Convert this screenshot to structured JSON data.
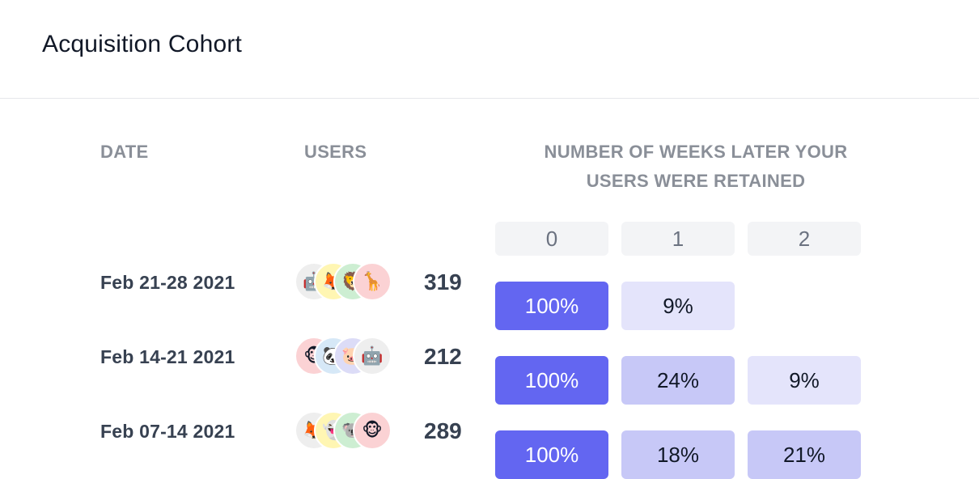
{
  "header": {
    "title": "Acquisition Cohort"
  },
  "columns": {
    "date": "DATE",
    "users": "USERS",
    "weeks_line1": "NUMBER OF WEEKS LATER YOUR",
    "weeks_line2": "USERS WERE RETAINED"
  },
  "weeks": [
    "0",
    "1",
    "2"
  ],
  "colors": {
    "cell_strong": "#6366f1",
    "cell_medium": "#c7c8f7",
    "cell_light": "#e4e4fb",
    "week_header_bg": "#f3f4f6"
  },
  "rows": [
    {
      "date": "Feb 21-28 2021",
      "users": "319",
      "avatars": [
        {
          "icon": "robot-icon",
          "glyph": "🤖",
          "bg": "#eeeeee"
        },
        {
          "icon": "fox-icon",
          "glyph": "🦊",
          "bg": "#fff6b3"
        },
        {
          "icon": "lion-icon",
          "glyph": "🦁",
          "bg": "#cdeed2"
        },
        {
          "icon": "giraffe-icon",
          "glyph": "🦒",
          "bg": "#fbd2d4"
        }
      ],
      "cells": [
        "100%",
        "9%",
        ""
      ]
    },
    {
      "date": "Feb 14-21 2021",
      "users": "212",
      "avatars": [
        {
          "icon": "monkey-icon",
          "glyph": "🐵",
          "bg": "#fbd2d4"
        },
        {
          "icon": "panda-icon",
          "glyph": "🐼",
          "bg": "#d6e8f7"
        },
        {
          "icon": "pig-icon",
          "glyph": "🐷",
          "bg": "#dcdcf7"
        },
        {
          "icon": "robot-icon",
          "glyph": "🤖",
          "bg": "#eeeeee"
        }
      ],
      "cells": [
        "100%",
        "24%",
        "9%"
      ]
    },
    {
      "date": "Feb 07-14 2021",
      "users": "289",
      "avatars": [
        {
          "icon": "fox-icon",
          "glyph": "🦊",
          "bg": "#eeeeee"
        },
        {
          "icon": "ghost-icon",
          "glyph": "👻",
          "bg": "#fff6b3"
        },
        {
          "icon": "koala-icon",
          "glyph": "🐨",
          "bg": "#cdeed2"
        },
        {
          "icon": "monkey-icon",
          "glyph": "🐵",
          "bg": "#fbd2d4"
        }
      ],
      "cells": [
        "100%",
        "18%",
        "21%"
      ]
    }
  ]
}
